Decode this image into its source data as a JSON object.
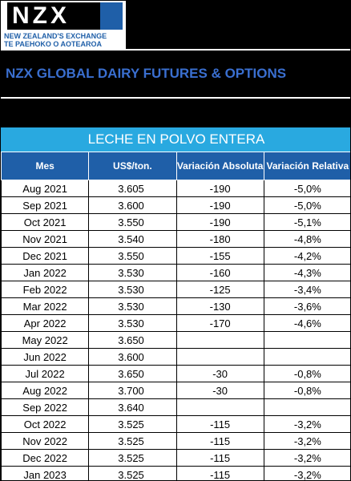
{
  "header": {
    "logo": "NZX",
    "logo_line1": "NEW ZEALAND'S EXCHANGE",
    "logo_line2": "TE PAEHOKO O AOTEAROA",
    "title": "NZX GLOBAL DAIRY FUTURES & OPTIONS"
  },
  "table": {
    "title": "LECHE EN POLVO ENTERA",
    "columns": [
      "Mes",
      "US$/ton.",
      "Variación Absoluta",
      "Variación Relativa"
    ],
    "rows": [
      [
        "Aug 2021",
        "3.605",
        "-190",
        "-5,0%"
      ],
      [
        "Sep 2021",
        "3.600",
        "-190",
        "-5,0%"
      ],
      [
        "Oct 2021",
        "3.550",
        "-190",
        "-5,1%"
      ],
      [
        "Nov 2021",
        "3.540",
        "-180",
        "-4,8%"
      ],
      [
        "Dec 2021",
        "3.550",
        "-155",
        "-4,2%"
      ],
      [
        "Jan 2022",
        "3.530",
        "-160",
        "-4,3%"
      ],
      [
        "Feb 2022",
        "3.530",
        "-125",
        "-3,4%"
      ],
      [
        "Mar 2022",
        "3.530",
        "-130",
        "-3,6%"
      ],
      [
        "Apr 2022",
        "3.530",
        "-170",
        "-4,6%"
      ],
      [
        "May 2022",
        "3.650",
        null,
        null
      ],
      [
        "Jun 2022",
        "3.600",
        null,
        null
      ],
      [
        "Jul 2022",
        "3.650",
        "-30",
        "-0,8%"
      ],
      [
        "Aug 2022",
        "3.700",
        "-30",
        "-0,8%"
      ],
      [
        "Sep 2022",
        "3.640",
        null,
        null
      ],
      [
        "Oct 2022",
        "3.525",
        "-115",
        "-3,2%"
      ],
      [
        "Nov 2022",
        "3.525",
        "-115",
        "-3,2%"
      ],
      [
        "Dec 2022",
        "3.525",
        "-115",
        "-3,2%"
      ],
      [
        "Jan 2023",
        "3.525",
        "-115",
        "-3,2%"
      ]
    ]
  }
}
